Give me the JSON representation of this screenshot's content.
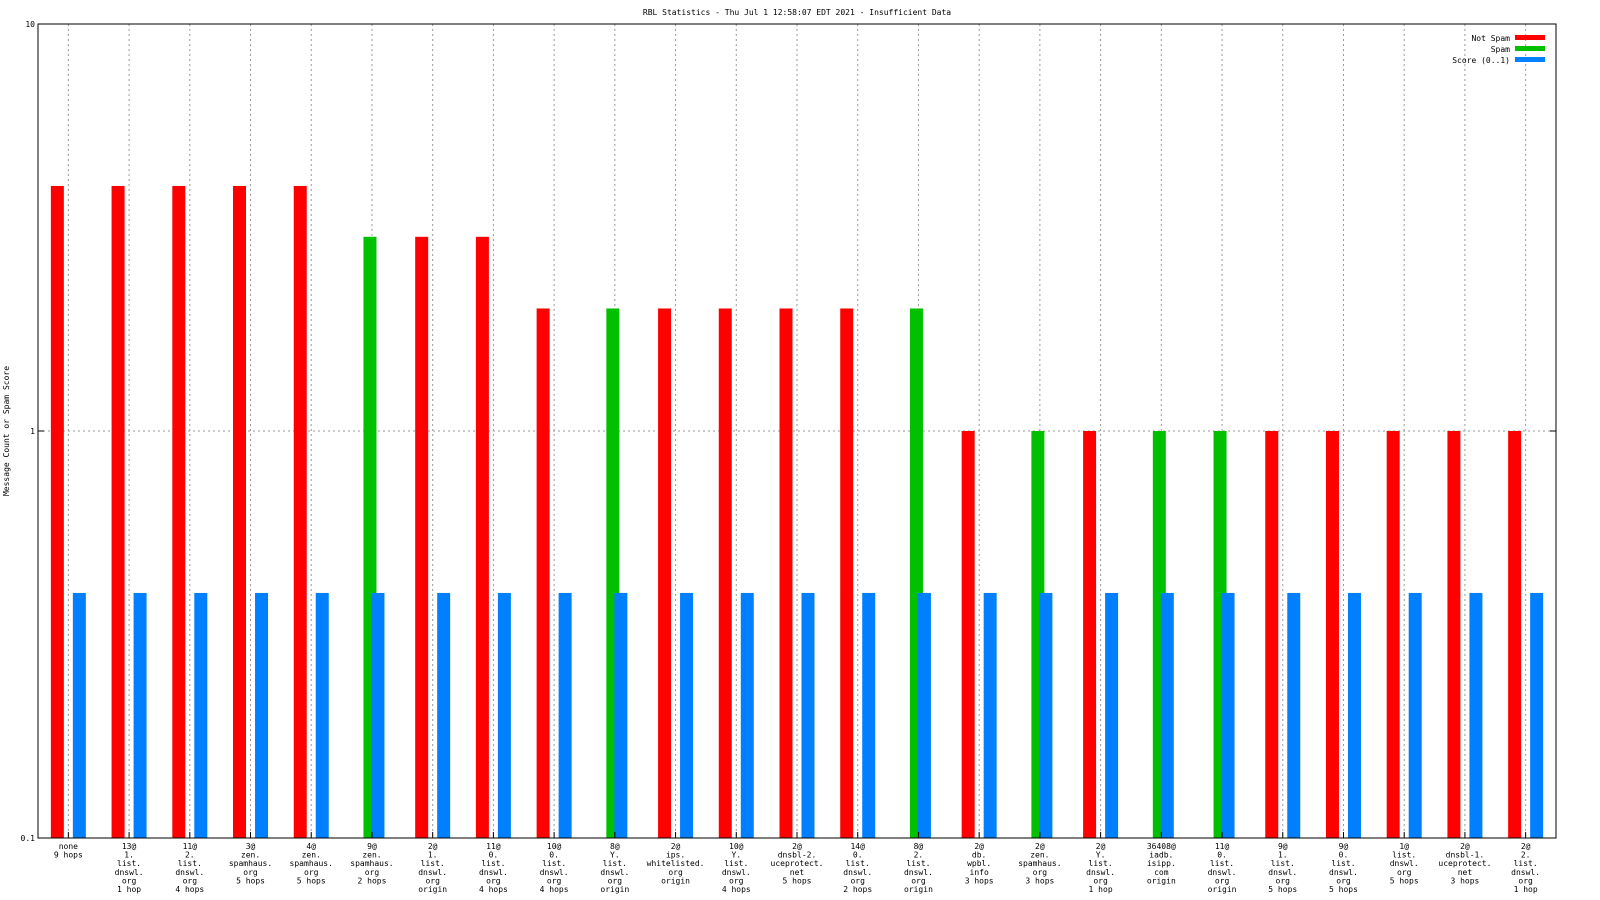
{
  "chart_data": {
    "type": "bar",
    "title": "RBL Statistics - Thu Jul  1 12:58:07 EDT 2021 - Insufficient Data",
    "ylabel": "Message Count or Spam Score",
    "xlabel": "",
    "y_scale": "log",
    "ylim": [
      0.1,
      10
    ],
    "y_ticks": [
      "0.1",
      "1",
      "10"
    ],
    "grid": true,
    "legend_position": "top-right",
    "categories": [
      [
        "none",
        "9 hops"
      ],
      [
        "13@",
        "1.",
        "list.",
        "dnswl.",
        "org",
        "1 hop"
      ],
      [
        "11@",
        "2.",
        "list.",
        "dnswl.",
        "org",
        "4 hops"
      ],
      [
        "3@",
        "zen.",
        "spamhaus.",
        "org",
        "5 hops"
      ],
      [
        "4@",
        "zen.",
        "spamhaus.",
        "org",
        "5 hops"
      ],
      [
        "9@",
        "zen.",
        "spamhaus.",
        "org",
        "2 hops"
      ],
      [
        "2@",
        "1.",
        "list.",
        "dnswl.",
        "org",
        "origin"
      ],
      [
        "11@",
        "0.",
        "list.",
        "dnswl.",
        "org",
        "4 hops"
      ],
      [
        "10@",
        "0.",
        "list.",
        "dnswl.",
        "org",
        "4 hops"
      ],
      [
        "8@",
        "Y.",
        "list.",
        "dnswl.",
        "org",
        "origin"
      ],
      [
        "2@",
        "ips.",
        "whitelisted.",
        "org",
        "origin"
      ],
      [
        "10@",
        "Y.",
        "list.",
        "dnswl.",
        "org",
        "4 hops"
      ],
      [
        "2@",
        "dnsbl-2.",
        "uceprotect.",
        "net",
        "5 hops"
      ],
      [
        "14@",
        "0.",
        "list.",
        "dnswl.",
        "org",
        "2 hops"
      ],
      [
        "8@",
        "2.",
        "list.",
        "dnswl.",
        "org",
        "origin"
      ],
      [
        "2@",
        "db.",
        "wpbl.",
        "info",
        "3 hops"
      ],
      [
        "2@",
        "zen.",
        "spamhaus.",
        "org",
        "3 hops"
      ],
      [
        "2@",
        "Y.",
        "list.",
        "dnswl.",
        "org",
        "1 hop"
      ],
      [
        "36408@",
        "iadb.",
        "isipp.",
        "com",
        "origin"
      ],
      [
        "11@",
        "0.",
        "list.",
        "dnswl.",
        "org",
        "origin"
      ],
      [
        "9@",
        "1.",
        "list.",
        "dnswl.",
        "org",
        "5 hops"
      ],
      [
        "9@",
        "0.",
        "list.",
        "dnswl.",
        "org",
        "5 hops"
      ],
      [
        "1@",
        "list.",
        "dnswl.",
        "org",
        "5 hops"
      ],
      [
        "2@",
        "dnsbl-1.",
        "uceprotect.",
        "net",
        "3 hops"
      ],
      [
        "2@",
        "2.",
        "list.",
        "dnswl.",
        "org",
        "1 hop"
      ]
    ],
    "series": [
      {
        "name": "Not Spam",
        "color": "#ff0000",
        "values": [
          4,
          4,
          4,
          4,
          4,
          0,
          3,
          3,
          2,
          0,
          2,
          2,
          2,
          2,
          0,
          1,
          0,
          1,
          0,
          0,
          1,
          1,
          1,
          1,
          1
        ]
      },
      {
        "name": "Spam",
        "color": "#00c000",
        "values": [
          0,
          0,
          0,
          0,
          0,
          3,
          0,
          0,
          0,
          2,
          0,
          0,
          0,
          0,
          2,
          0,
          1,
          0,
          1,
          1,
          0,
          0,
          0,
          0,
          0
        ]
      },
      {
        "name": "Score (0..1)",
        "color": "#0080ff",
        "values": [
          0.4,
          0.4,
          0.4,
          0.4,
          0.4,
          0.4,
          0.4,
          0.4,
          0.4,
          0.4,
          0.4,
          0.4,
          0.4,
          0.4,
          0.4,
          0.4,
          0.4,
          0.4,
          0.4,
          0.4,
          0.4,
          0.4,
          0.4,
          0.4,
          0.4
        ]
      }
    ]
  }
}
